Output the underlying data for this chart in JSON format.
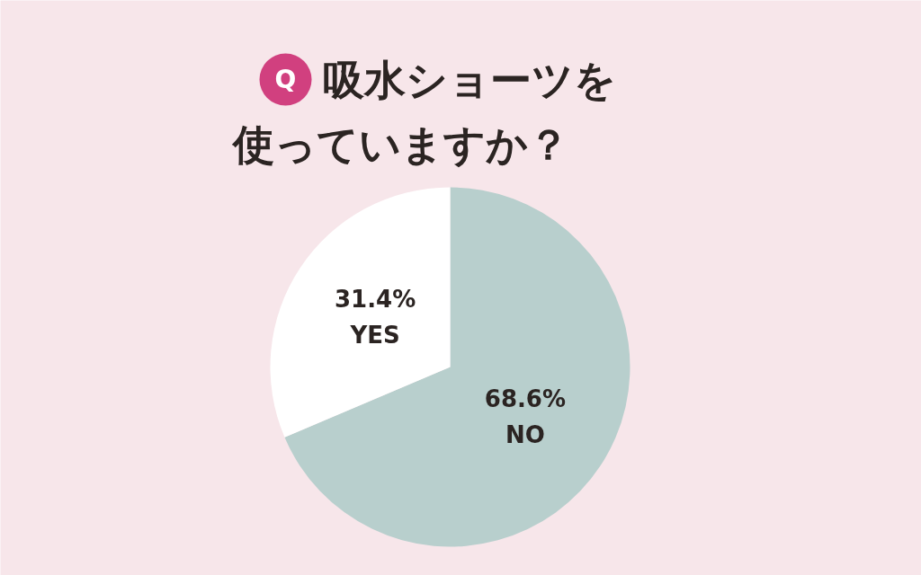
{
  "chart_data": {
    "type": "pie",
    "title": "吸水ショーツを使っていますか？",
    "annotations": [
      "Q"
    ],
    "categories": [
      "NO",
      "YES"
    ],
    "values": [
      68.6,
      31.4
    ],
    "colors": [
      "#b8cfcd",
      "#ffffff"
    ],
    "value_labels": [
      "68.6%",
      "31.4%"
    ]
  }
}
